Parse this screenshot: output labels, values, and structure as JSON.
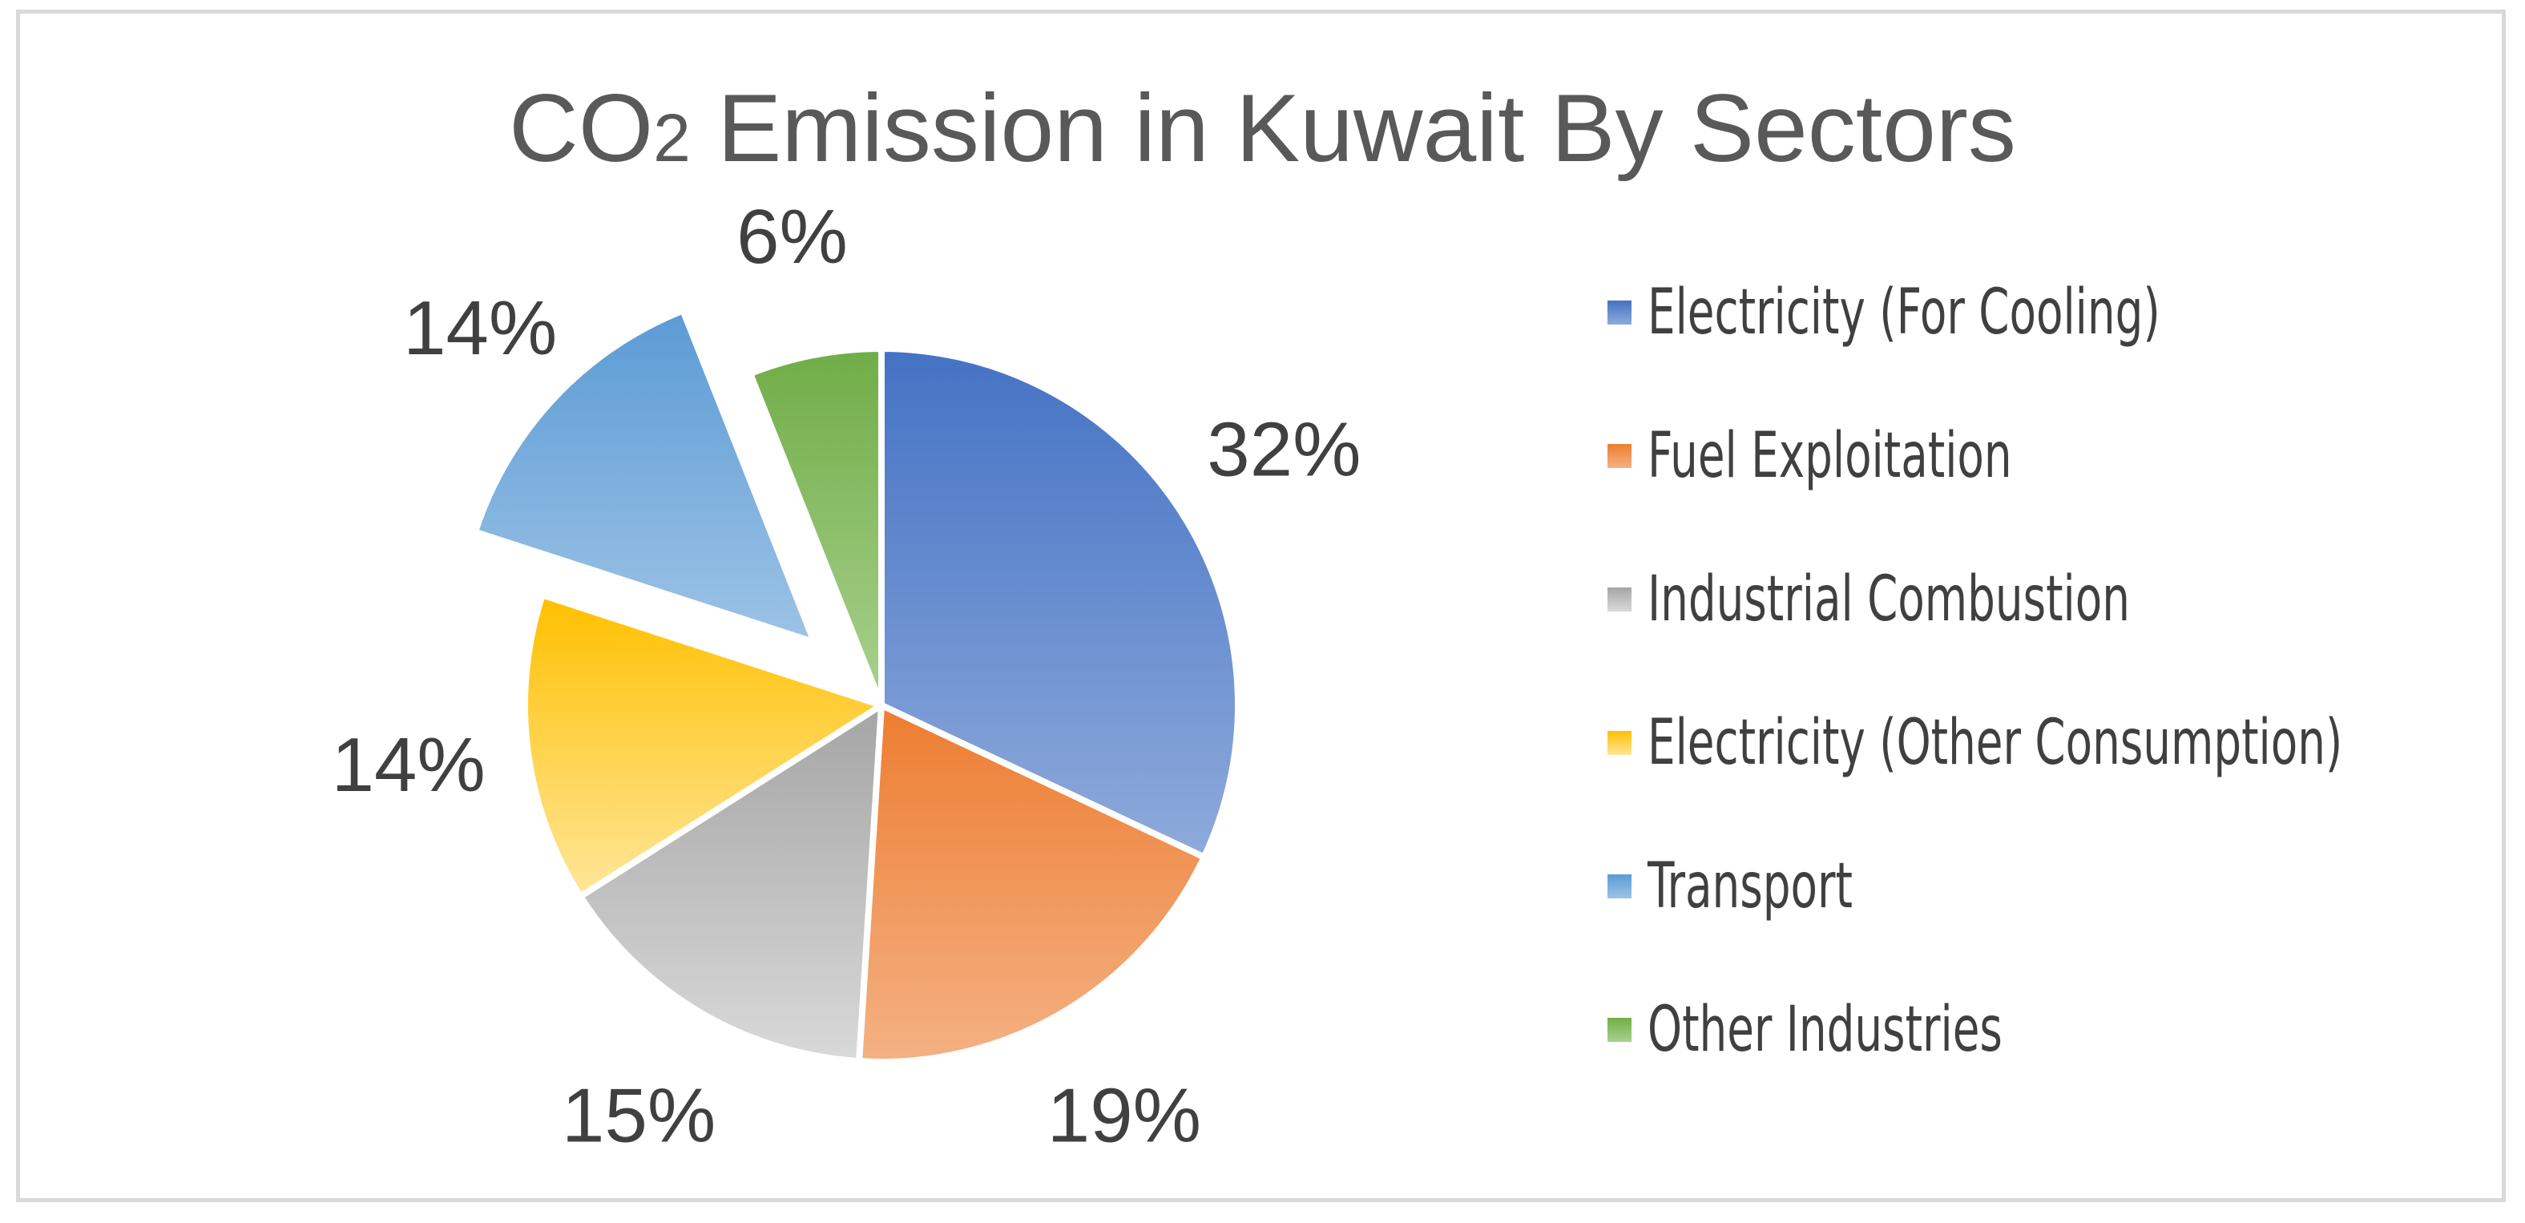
{
  "chart_data": {
    "type": "pie",
    "title_main": "CO",
    "title_sub": "2",
    "title_rest": " Emission in Kuwait By Sectors",
    "legend_position": "right",
    "slices": [
      {
        "name": "Electricity (For Cooling)",
        "value": 32,
        "label": "32%",
        "color": "#4472c4",
        "color_light": "#8eaadb",
        "exploded": false
      },
      {
        "name": "Fuel Exploitation",
        "value": 19,
        "label": "19%",
        "color": "#ed7d31",
        "color_light": "#f4b183",
        "exploded": false
      },
      {
        "name": "Industrial Combustion",
        "value": 15,
        "label": "15%",
        "color": "#a5a5a5",
        "color_light": "#d9d9d9",
        "exploded": false
      },
      {
        "name": "Electricity (Other Consumption)",
        "value": 14,
        "label": "14%",
        "color": "#ffc000",
        "color_light": "#ffe699",
        "exploded": false
      },
      {
        "name": "Transport",
        "value": 14,
        "label": "14%",
        "color": "#5b9bd5",
        "color_light": "#9dc3e6",
        "exploded": true
      },
      {
        "name": "Other Industries",
        "value": 6,
        "label": "6%",
        "color": "#70ad47",
        "color_light": "#a9d18e",
        "exploded": false
      }
    ]
  }
}
